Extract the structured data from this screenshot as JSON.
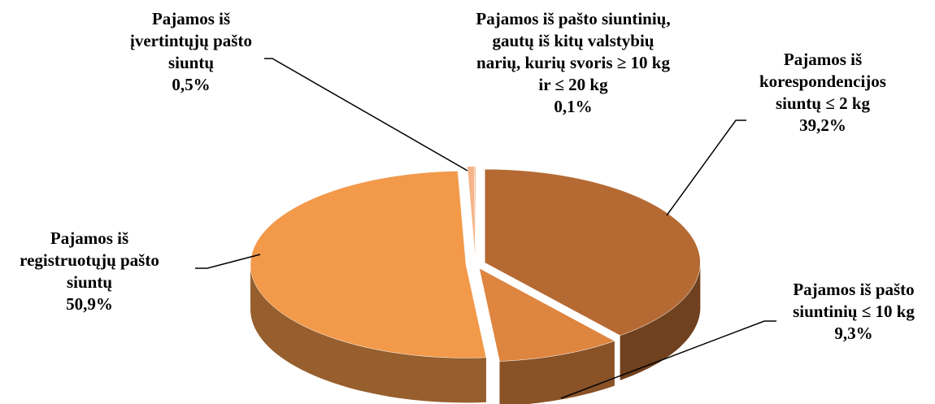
{
  "chart_data": {
    "type": "pie",
    "categories": [
      "Pajamos iš korespondencijos siuntų ≤ 2 kg",
      "Pajamos iš pašto siuntinių ≤ 10 kg",
      "Pajamos iš registruotųjų pašto siuntų",
      "Pajamos iš įvertintųjų pašto siuntų",
      "Pajamos iš pašto siuntinių, gautų iš kitų valstybių narių, kurių svoris ≥ 10 kg ir ≤ 20 kg"
    ],
    "values": [
      39.2,
      9.3,
      50.9,
      0.5,
      0.1
    ],
    "value_labels": [
      "39,2%",
      "9,3%",
      "50,9%",
      "0,5%",
      "0,1%"
    ],
    "colors": [
      "#b56a33",
      "#de8540",
      "#f2994a",
      "#f6b48a",
      "#f3a46c"
    ]
  }
}
